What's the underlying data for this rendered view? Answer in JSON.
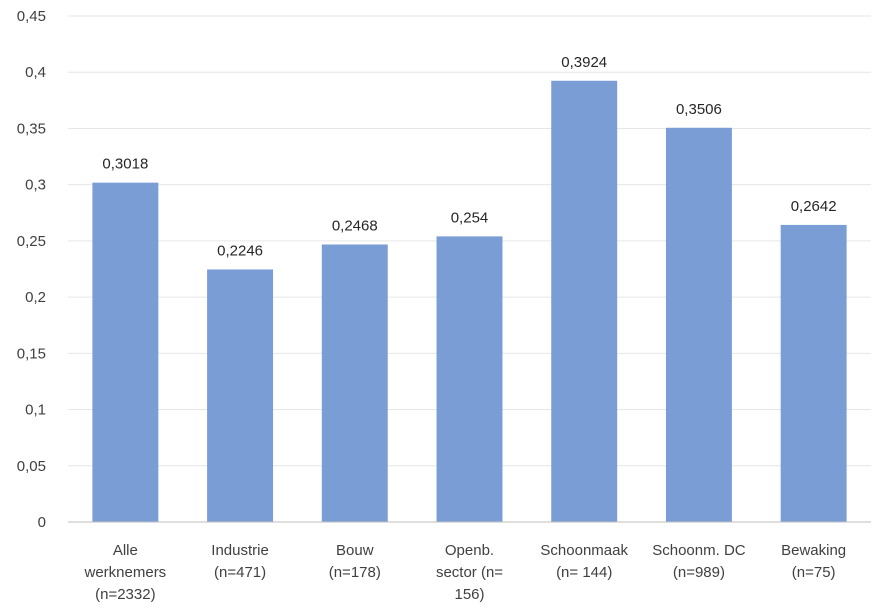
{
  "chart_data": {
    "type": "bar",
    "categories": [
      [
        "Alle",
        "werknemers",
        "(n=2332)"
      ],
      [
        "Industrie",
        "(n=471)"
      ],
      [
        "Bouw",
        "(n=178)"
      ],
      [
        "Openb.",
        "sector (n=",
        "156)"
      ],
      [
        "Schoonmaak",
        "(n= 144)"
      ],
      [
        "Schoonm. DC",
        "(n=989)"
      ],
      [
        "Bewaking",
        "(n=75)"
      ]
    ],
    "values": [
      0.3018,
      0.2246,
      0.2468,
      0.254,
      0.3924,
      0.3506,
      0.2642
    ],
    "value_labels": [
      "0,3018",
      "0,2246",
      "0,2468",
      "0,254",
      "0,3924",
      "0,3506",
      "0,2642"
    ],
    "y_ticks": [
      0,
      0.05,
      0.1,
      0.15,
      0.2,
      0.25,
      0.3,
      0.35,
      0.4,
      0.45
    ],
    "y_tick_labels": [
      "0",
      "0,05",
      "0,1",
      "0,15",
      "0,2",
      "0,25",
      "0,3",
      "0,35",
      "0,4",
      "0,45"
    ],
    "ylim": [
      0,
      0.45
    ],
    "title": "",
    "xlabel": "",
    "ylabel": "",
    "grid": true,
    "legend": "none",
    "bar_color": "#7b9dd6"
  }
}
